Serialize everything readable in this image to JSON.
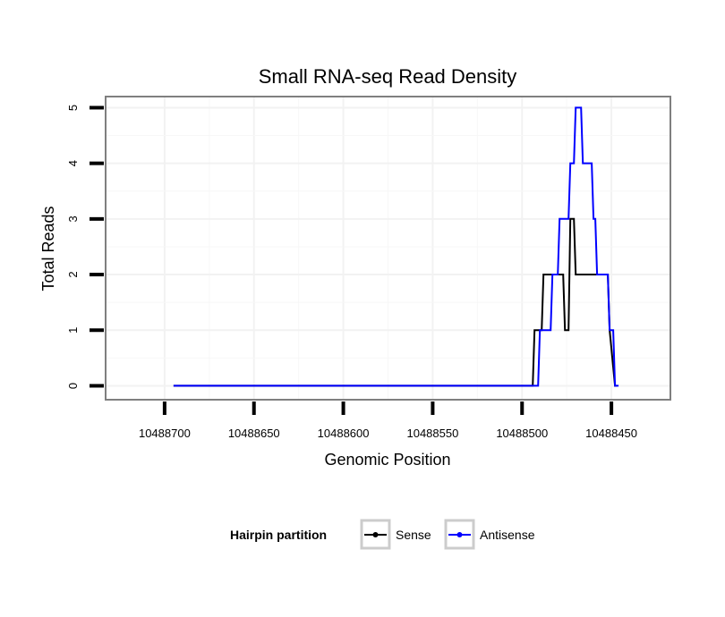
{
  "chart_data": {
    "type": "line",
    "title": "Small RNA-seq Read Density",
    "xlabel": "Genomic Position",
    "ylabel": "Total Reads",
    "x_reversed": true,
    "xlim": [
      10488733,
      10488417
    ],
    "ylim": [
      -0.25,
      5.2
    ],
    "xticks": [
      10488700,
      10488650,
      10488600,
      10488550,
      10488500,
      10488450
    ],
    "xtick_labels": [
      "10488700",
      "10488650",
      "10488600",
      "10488550",
      "10488500",
      "10488450"
    ],
    "yticks": [
      0,
      1,
      2,
      3,
      4,
      5
    ],
    "ytick_labels": [
      "0",
      "1",
      "2",
      "3",
      "4",
      "5"
    ],
    "grid": true,
    "legend": {
      "title": "Hairpin partition",
      "position": "bottom"
    },
    "series": [
      {
        "name": "Sense",
        "color": "#000000",
        "x": [
          10488695,
          10488494,
          10488493,
          10488489,
          10488488,
          10488477,
          10488476,
          10488474,
          10488473,
          10488471,
          10488470,
          10488469,
          10488468,
          10488452,
          10488451,
          10488448,
          10488447
        ],
        "y": [
          0,
          0,
          1,
          1,
          2,
          2,
          1,
          1,
          3,
          3,
          2,
          2,
          2,
          2,
          1,
          0,
          0
        ]
      },
      {
        "name": "Antisense",
        "color": "#0000ff",
        "x": [
          10488695,
          10488491,
          10488490,
          10488484,
          10488483,
          10488480,
          10488479,
          10488474,
          10488473,
          10488471,
          10488470,
          10488467,
          10488466,
          10488461,
          10488460,
          10488459,
          10488458,
          10488452,
          10488451,
          10488449,
          10488448,
          10488447,
          10488446
        ],
        "y": [
          0,
          0,
          1,
          1,
          2,
          2,
          3,
          3,
          4,
          4,
          5,
          5,
          4,
          4,
          3,
          3,
          2,
          2,
          1,
          1,
          0,
          0,
          0
        ]
      }
    ]
  }
}
